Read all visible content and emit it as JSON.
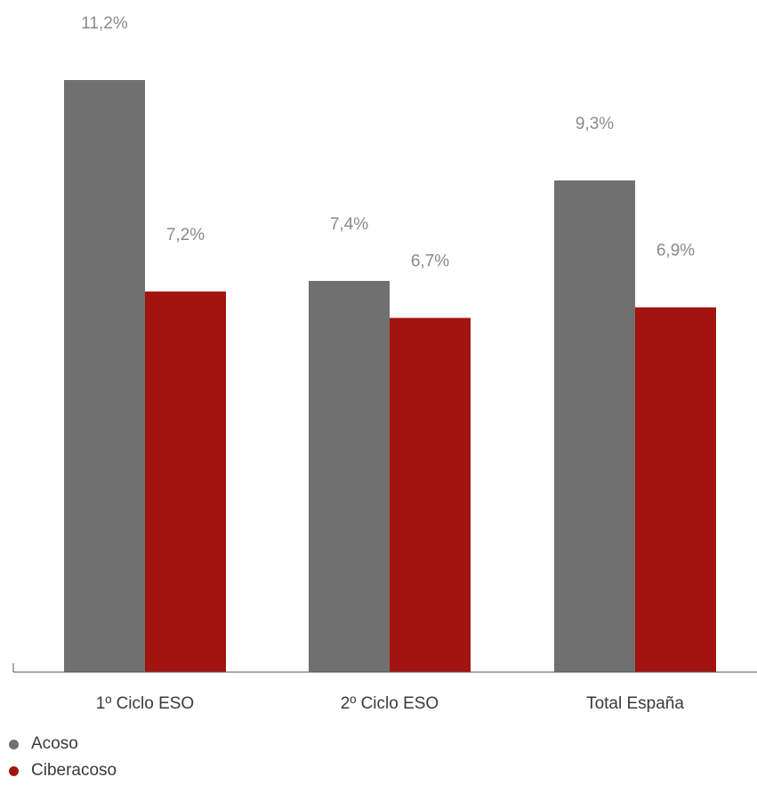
{
  "chart_data": {
    "type": "bar",
    "categories": [
      "1º Ciclo ESO",
      "2º Ciclo ESO",
      "Total España"
    ],
    "series": [
      {
        "name": "Acoso",
        "values": [
          11.2,
          7.4,
          9.3
        ],
        "labels": [
          "11,2%",
          "7,4%",
          "9,3%"
        ],
        "color": "#707070"
      },
      {
        "name": "Ciberacoso",
        "values": [
          7.2,
          6.7,
          6.9
        ],
        "labels": [
          "7,2%",
          "6,7%",
          "6,9%"
        ],
        "color": "#a11410"
      }
    ],
    "title": "",
    "xlabel": "",
    "ylabel": "",
    "ylim": [
      0,
      11.2
    ],
    "grid": false,
    "legend_position": "bottom-left"
  }
}
